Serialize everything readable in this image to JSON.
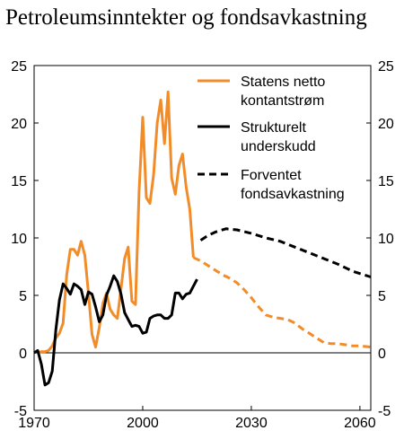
{
  "chart_data": {
    "type": "line",
    "title": "Petroleumsinntekter og fondsavkastning",
    "xlabel": "",
    "ylabel": "",
    "xlim": [
      1970,
      2063
    ],
    "ylim": [
      -5,
      25
    ],
    "x_ticks": [
      1970,
      2000,
      2030,
      2060
    ],
    "y_ticks": [
      25,
      20,
      15,
      10,
      5,
      0,
      -5
    ],
    "grid": false,
    "legend_position": "top-right",
    "series": [
      {
        "name": "Statens netto kontantstrøm",
        "color": "#f28c28",
        "style": "solid",
        "points": [
          [
            1971,
            0
          ],
          [
            1972,
            0.1
          ],
          [
            1973,
            0.1
          ],
          [
            1974,
            0.2
          ],
          [
            1975,
            0.6
          ],
          [
            1976,
            1.3
          ],
          [
            1977,
            1.7
          ],
          [
            1978,
            2.6
          ],
          [
            1979,
            6.8
          ],
          [
            1980,
            9.0
          ],
          [
            1981,
            9.0
          ],
          [
            1982,
            8.5
          ],
          [
            1983,
            9.7
          ],
          [
            1984,
            8.5
          ],
          [
            1985,
            5.2
          ],
          [
            1986,
            1.6
          ],
          [
            1987,
            0.5
          ],
          [
            1988,
            2.2
          ],
          [
            1989,
            4.3
          ],
          [
            1990,
            5.2
          ],
          [
            1991,
            3.8
          ],
          [
            1992,
            3.3
          ],
          [
            1993,
            3.0
          ],
          [
            1994,
            5.6
          ],
          [
            1995,
            8.2
          ],
          [
            1996,
            9.2
          ],
          [
            1997,
            4.5
          ],
          [
            1998,
            4.2
          ],
          [
            1999,
            14.0
          ],
          [
            2000,
            20.5
          ],
          [
            2001,
            13.5
          ],
          [
            2002,
            13.0
          ],
          [
            2003,
            15.5
          ],
          [
            2004,
            20.0
          ],
          [
            2005,
            22.0
          ],
          [
            2006,
            18.2
          ],
          [
            2007,
            22.7
          ],
          [
            2008,
            15.2
          ],
          [
            2009,
            13.8
          ],
          [
            2010,
            16.3
          ],
          [
            2011,
            17.3
          ],
          [
            2012,
            14.4
          ],
          [
            2013,
            12.5
          ],
          [
            2014,
            8.3
          ]
        ]
      },
      {
        "name": "Strukturelt underskudd",
        "color": "#000000",
        "style": "solid",
        "points": [
          [
            1970,
            0
          ],
          [
            1971,
            0.2
          ],
          [
            1972,
            -1.0
          ],
          [
            1973,
            -2.8
          ],
          [
            1974,
            -2.6
          ],
          [
            1975,
            -1.6
          ],
          [
            1976,
            2.0
          ],
          [
            1977,
            4.6
          ],
          [
            1978,
            6.0
          ],
          [
            1979,
            5.6
          ],
          [
            1980,
            5.1
          ],
          [
            1981,
            6.0
          ],
          [
            1982,
            5.8
          ],
          [
            1983,
            5.5
          ],
          [
            1984,
            4.2
          ],
          [
            1985,
            5.3
          ],
          [
            1986,
            5.1
          ],
          [
            1987,
            4.0
          ],
          [
            1988,
            2.7
          ],
          [
            1989,
            3.3
          ],
          [
            1990,
            5.0
          ],
          [
            1991,
            5.8
          ],
          [
            1992,
            6.7
          ],
          [
            1993,
            6.2
          ],
          [
            1994,
            5.1
          ],
          [
            1995,
            3.5
          ],
          [
            1996,
            2.9
          ],
          [
            1997,
            2.3
          ],
          [
            1998,
            2.4
          ],
          [
            1999,
            2.3
          ],
          [
            2000,
            1.7
          ],
          [
            2001,
            1.8
          ],
          [
            2002,
            3.0
          ],
          [
            2003,
            3.2
          ],
          [
            2004,
            3.3
          ],
          [
            2005,
            3.3
          ],
          [
            2006,
            3.0
          ],
          [
            2007,
            3.0
          ],
          [
            2008,
            3.3
          ],
          [
            2009,
            5.2
          ],
          [
            2010,
            5.2
          ],
          [
            2011,
            4.7
          ],
          [
            2012,
            5.1
          ],
          [
            2013,
            5.2
          ],
          [
            2014,
            5.8
          ],
          [
            2015,
            6.4
          ]
        ]
      },
      {
        "name": "Forventet fondsavkastning",
        "color": "#000000",
        "style": "dashed",
        "points": [
          [
            2016,
            9.8
          ],
          [
            2018,
            10.2
          ],
          [
            2020,
            10.5
          ],
          [
            2023,
            10.8
          ],
          [
            2026,
            10.7
          ],
          [
            2030,
            10.4
          ],
          [
            2034,
            10.0
          ],
          [
            2038,
            9.7
          ],
          [
            2042,
            9.2
          ],
          [
            2046,
            8.7
          ],
          [
            2050,
            8.2
          ],
          [
            2054,
            7.7
          ],
          [
            2058,
            7.1
          ],
          [
            2061,
            6.8
          ],
          [
            2063,
            6.6
          ]
        ]
      },
      {
        "name": "",
        "color": "#f28c28",
        "style": "dashed",
        "points": [
          [
            2014,
            8.3
          ],
          [
            2016,
            8.0
          ],
          [
            2018,
            7.6
          ],
          [
            2020,
            7.2
          ],
          [
            2022,
            6.8
          ],
          [
            2024,
            6.5
          ],
          [
            2026,
            6.1
          ],
          [
            2028,
            5.5
          ],
          [
            2030,
            4.8
          ],
          [
            2032,
            4.0
          ],
          [
            2034,
            3.3
          ],
          [
            2036,
            3.1
          ],
          [
            2038,
            3.0
          ],
          [
            2040,
            2.9
          ],
          [
            2042,
            2.6
          ],
          [
            2044,
            2.1
          ],
          [
            2046,
            1.7
          ],
          [
            2048,
            1.3
          ],
          [
            2050,
            0.9
          ],
          [
            2052,
            0.8
          ],
          [
            2054,
            0.8
          ],
          [
            2056,
            0.7
          ],
          [
            2058,
            0.6
          ],
          [
            2060,
            0.6
          ],
          [
            2063,
            0.5
          ]
        ]
      }
    ],
    "legend": [
      {
        "lines": [
          "Statens netto",
          "kontantstrøm"
        ],
        "color": "#f28c28",
        "style": "solid"
      },
      {
        "lines": [
          "Strukturelt",
          "underskudd"
        ],
        "color": "#000000",
        "style": "solid"
      },
      {
        "lines": [
          "Forventet",
          "fondsavkastning"
        ],
        "color": "#000000",
        "style": "dashed"
      }
    ]
  }
}
